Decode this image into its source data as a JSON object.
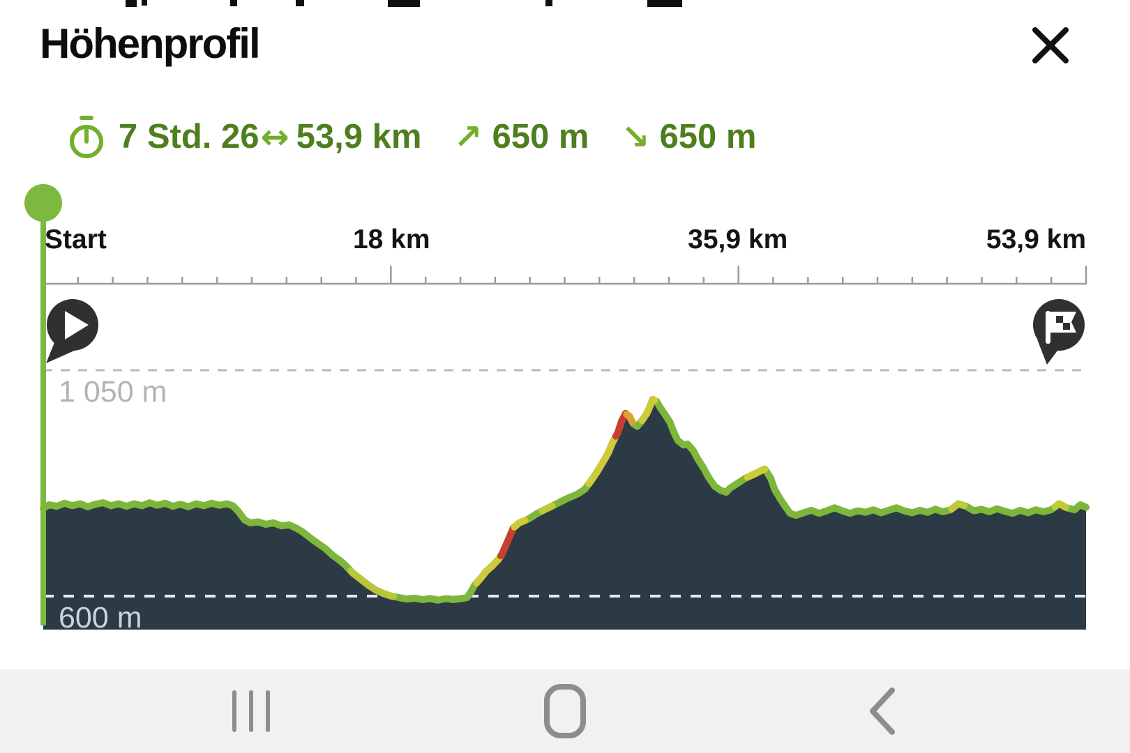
{
  "header": {
    "title": "Höhenprofil"
  },
  "stats": {
    "duration": "7 Std. 26",
    "between_arrow": "↔",
    "distance": "53,9 km",
    "ascent_arrow": "↗",
    "ascent": "650 m",
    "descent_arrow": "↘",
    "descent": "650 m"
  },
  "colors": {
    "accent_green": "#72af2c",
    "stat_text_green": "#4e7e1e",
    "marker_green": "#7cb93e",
    "profile_line_green": "#7db63a",
    "terrain_fill": "#2c3a45",
    "steep_red": "#c7402f",
    "steep_yellow": "#cfca39",
    "pin_dark": "#303030",
    "axis_gray": "#9a9a9a",
    "grid_upper_gray": "#b9b9b9",
    "grid_lower_light": "#e7eaee",
    "nav_icon_gray": "#8d8d8d"
  },
  "chart_data": {
    "type": "area",
    "title": "Höhenprofil",
    "x_unit": "km",
    "y_unit": "m",
    "xlim": [
      0,
      53.9
    ],
    "ylim": [
      580,
      1100
    ],
    "grid": true,
    "legend": false,
    "x_ticks": [
      {
        "label": "Start",
        "km": 0
      },
      {
        "label": "18 km",
        "km": 18
      },
      {
        "label": "35,9 km",
        "km": 35.9
      },
      {
        "label": "53,9 km",
        "km": 53.9
      }
    ],
    "minor_tick_intervals": 30,
    "gridlines": [
      {
        "label": "1 050 m",
        "value": 1050,
        "line_color": "#b9b9b9",
        "label_color": "#b3b3b3"
      },
      {
        "label": "600 m",
        "value": 600,
        "line_color": "#e7eaee",
        "label_color": "#ccd3db"
      }
    ],
    "marker_km": 0,
    "start_pin": "play-icon",
    "end_pin": "finish-flag-icon",
    "profile": [
      [
        0,
        775
      ],
      [
        0.3,
        782
      ],
      [
        0.7,
        779
      ],
      [
        1.1,
        785
      ],
      [
        1.5,
        780
      ],
      [
        1.9,
        784
      ],
      [
        2.3,
        778
      ],
      [
        2.7,
        783
      ],
      [
        3.1,
        786
      ],
      [
        3.5,
        780
      ],
      [
        3.9,
        784
      ],
      [
        4.3,
        779
      ],
      [
        4.7,
        784
      ],
      [
        5.1,
        780
      ],
      [
        5.5,
        786
      ],
      [
        5.9,
        781
      ],
      [
        6.3,
        785
      ],
      [
        6.7,
        779
      ],
      [
        7.1,
        783
      ],
      [
        7.5,
        778
      ],
      [
        7.9,
        784
      ],
      [
        8.3,
        780
      ],
      [
        8.7,
        785
      ],
      [
        9.1,
        781
      ],
      [
        9.5,
        784
      ],
      [
        9.8,
        780
      ],
      [
        10.1,
        768
      ],
      [
        10.4,
        752
      ],
      [
        10.7,
        746
      ],
      [
        11.1,
        748
      ],
      [
        11.5,
        743
      ],
      [
        11.9,
        746
      ],
      [
        12.3,
        740
      ],
      [
        12.7,
        742
      ],
      [
        13.1,
        735
      ],
      [
        13.4,
        728
      ],
      [
        13.8,
        716
      ],
      [
        14.2,
        705
      ],
      [
        14.6,
        694
      ],
      [
        15,
        680
      ],
      [
        15.3,
        672
      ],
      [
        15.6,
        662
      ],
      [
        16,
        646
      ],
      [
        16.4,
        634
      ],
      [
        16.8,
        622
      ],
      [
        17.2,
        612
      ],
      [
        17.6,
        605
      ],
      [
        18,
        600
      ],
      [
        18.4,
        597
      ],
      [
        18.8,
        594
      ],
      [
        19.2,
        596
      ],
      [
        19.6,
        593
      ],
      [
        20,
        595
      ],
      [
        20.4,
        592
      ],
      [
        20.8,
        595
      ],
      [
        21.2,
        593
      ],
      [
        21.6,
        595
      ],
      [
        21.9,
        597
      ],
      [
        22.1,
        608
      ],
      [
        22.3,
        622
      ],
      [
        22.6,
        635
      ],
      [
        22.9,
        650
      ],
      [
        23.2,
        660
      ],
      [
        23.5,
        672
      ],
      [
        23.7,
        683
      ],
      [
        23.9,
        700
      ],
      [
        24.1,
        718
      ],
      [
        24.3,
        736
      ],
      [
        24.6,
        746
      ],
      [
        25.1,
        754
      ],
      [
        25.5,
        764
      ],
      [
        26,
        774
      ],
      [
        26.5,
        783
      ],
      [
        27,
        793
      ],
      [
        27.6,
        803
      ],
      [
        28,
        813
      ],
      [
        28.3,
        829
      ],
      [
        28.6,
        846
      ],
      [
        28.9,
        865
      ],
      [
        29.2,
        885
      ],
      [
        29.4,
        904
      ],
      [
        29.7,
        926
      ],
      [
        29.9,
        949
      ],
      [
        30.1,
        964
      ],
      [
        30.3,
        958
      ],
      [
        30.5,
        943
      ],
      [
        30.7,
        938
      ],
      [
        30.9,
        947
      ],
      [
        31.2,
        964
      ],
      [
        31.4,
        982
      ],
      [
        31.5,
        992
      ],
      [
        31.7,
        988
      ],
      [
        31.9,
        975
      ],
      [
        32.1,
        964
      ],
      [
        32.4,
        946
      ],
      [
        32.6,
        926
      ],
      [
        32.8,
        910
      ],
      [
        33.1,
        901
      ],
      [
        33.3,
        903
      ],
      [
        33.6,
        890
      ],
      [
        33.8,
        875
      ],
      [
        34.1,
        857
      ],
      [
        34.4,
        836
      ],
      [
        34.7,
        819
      ],
      [
        35,
        811
      ],
      [
        35.3,
        807
      ],
      [
        35.5,
        815
      ],
      [
        35.9,
        825
      ],
      [
        36.3,
        835
      ],
      [
        36.8,
        844
      ],
      [
        37.1,
        850
      ],
      [
        37.3,
        853
      ],
      [
        37.6,
        835
      ],
      [
        37.8,
        813
      ],
      [
        38.1,
        793
      ],
      [
        38.4,
        776
      ],
      [
        38.6,
        765
      ],
      [
        38.9,
        761
      ],
      [
        39.3,
        766
      ],
      [
        39.7,
        771
      ],
      [
        40.1,
        765
      ],
      [
        40.5,
        770
      ],
      [
        40.9,
        776
      ],
      [
        41.3,
        770
      ],
      [
        41.7,
        765
      ],
      [
        42.1,
        770
      ],
      [
        42.5,
        767
      ],
      [
        42.9,
        772
      ],
      [
        43.3,
        766
      ],
      [
        43.7,
        771
      ],
      [
        44.1,
        776
      ],
      [
        44.5,
        770
      ],
      [
        44.9,
        766
      ],
      [
        45.3,
        771
      ],
      [
        45.7,
        767
      ],
      [
        46.1,
        773
      ],
      [
        46.5,
        768
      ],
      [
        46.9,
        772
      ],
      [
        47.3,
        784
      ],
      [
        47.7,
        779
      ],
      [
        48.1,
        770
      ],
      [
        48.5,
        773
      ],
      [
        48.9,
        768
      ],
      [
        49.3,
        774
      ],
      [
        49.7,
        769
      ],
      [
        50.1,
        765
      ],
      [
        50.5,
        771
      ],
      [
        50.9,
        766
      ],
      [
        51.3,
        772
      ],
      [
        51.7,
        768
      ],
      [
        52.1,
        772
      ],
      [
        52.5,
        784
      ],
      [
        52.9,
        776
      ],
      [
        53.3,
        772
      ],
      [
        53.6,
        782
      ],
      [
        53.9,
        777
      ]
    ],
    "steep_segments": [
      {
        "from": 15.9,
        "to": 18.1,
        "color": "#b9c639"
      },
      {
        "from": 22.4,
        "to": 23.65,
        "color": "#cfca39"
      },
      {
        "from": 23.65,
        "to": 24.35,
        "color": "#c7402f"
      },
      {
        "from": 24.35,
        "to": 24.9,
        "color": "#cfca39"
      },
      {
        "from": 25.8,
        "to": 26.3,
        "color": "#bfc93a"
      },
      {
        "from": 28.2,
        "to": 29.6,
        "color": "#cfca39"
      },
      {
        "from": 29.6,
        "to": 30.15,
        "color": "#c7402f"
      },
      {
        "from": 30.15,
        "to": 30.45,
        "color": "#dda133"
      },
      {
        "from": 30.95,
        "to": 31.6,
        "color": "#cfca39"
      },
      {
        "from": 36.4,
        "to": 37.3,
        "color": "#cfca39"
      },
      {
        "from": 46.95,
        "to": 47.6,
        "color": "#bfc93a"
      },
      {
        "from": 52.3,
        "to": 52.85,
        "color": "#bfc93a"
      }
    ]
  },
  "nav_bar": {
    "items": [
      {
        "name": "recents"
      },
      {
        "name": "home"
      },
      {
        "name": "back"
      }
    ]
  }
}
